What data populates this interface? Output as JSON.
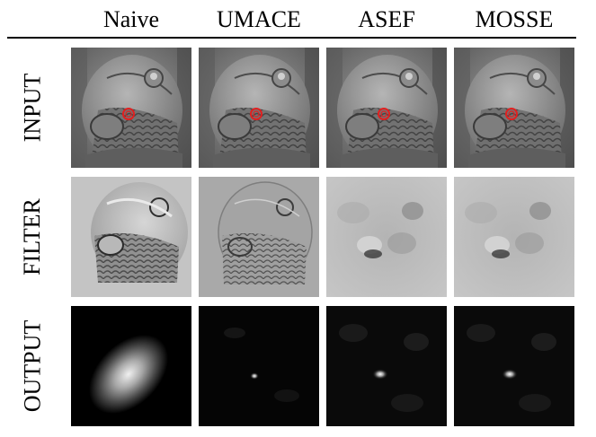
{
  "figure": {
    "columns": [
      "Naive",
      "UMACE",
      "ASEF",
      "MOSSE"
    ],
    "rows": [
      "INPUT",
      "FILTER",
      "OUTPUT"
    ]
  }
}
